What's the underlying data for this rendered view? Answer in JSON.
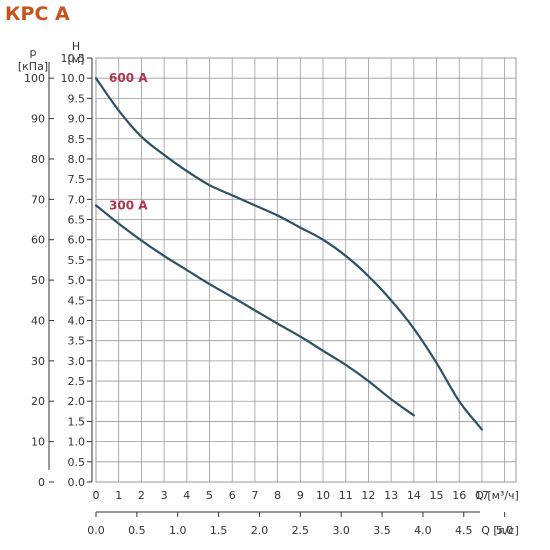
{
  "chart_data": {
    "type": "line",
    "title": "КРС А",
    "left_axis": {
      "unit_line1": "p",
      "unit_line2": "[кПа]",
      "ticks": [
        "0",
        "10",
        "20",
        "30",
        "40",
        "50",
        "60",
        "70",
        "80",
        "90",
        "100"
      ]
    },
    "y_axis": {
      "label_line1": "H",
      "label_line2": "[м]",
      "range": [
        0,
        10.5
      ],
      "step": 0.5,
      "ticks": [
        "0.0",
        "0.5",
        "1.0",
        "1.5",
        "2.0",
        "2.5",
        "3.0",
        "3.5",
        "4.0",
        "4.5",
        "5.0",
        "5.5",
        "6.0",
        "6.5",
        "7.0",
        "7.5",
        "8.0",
        "8.5",
        "9.0",
        "9.5",
        "10.0",
        "10.5"
      ]
    },
    "x_axis": {
      "label": "Q [м³/ч]",
      "range": [
        0,
        18.5
      ],
      "ticks": [
        "0",
        "1",
        "2",
        "3",
        "4",
        "5",
        "6",
        "7",
        "8",
        "9",
        "10",
        "11",
        "12",
        "13",
        "14",
        "15",
        "16",
        "17"
      ]
    },
    "x2_axis": {
      "label": "Q [л/с]",
      "ticks": [
        "0.0",
        "0.5",
        "1.0",
        "1.5",
        "2.0",
        "2.5",
        "3.0",
        "3.5",
        "4.0",
        "4.5",
        "5.0"
      ]
    },
    "grid": true,
    "series": [
      {
        "name": "600 A",
        "color": "#2c5066",
        "label_color": "#b0344e",
        "points": [
          [
            0,
            10.0
          ],
          [
            1,
            9.2
          ],
          [
            2,
            8.55
          ],
          [
            3,
            8.1
          ],
          [
            4,
            7.7
          ],
          [
            5,
            7.35
          ],
          [
            6,
            7.1
          ],
          [
            7,
            6.85
          ],
          [
            8,
            6.6
          ],
          [
            9,
            6.3
          ],
          [
            10,
            6.0
          ],
          [
            11,
            5.6
          ],
          [
            12,
            5.1
          ],
          [
            13,
            4.5
          ],
          [
            14,
            3.8
          ],
          [
            15,
            2.95
          ],
          [
            16,
            2.0
          ],
          [
            17,
            1.3
          ]
        ]
      },
      {
        "name": "300 A",
        "color": "#2c5066",
        "label_color": "#b0344e",
        "points": [
          [
            0,
            6.85
          ],
          [
            1,
            6.4
          ],
          [
            2,
            5.98
          ],
          [
            3,
            5.6
          ],
          [
            4,
            5.25
          ],
          [
            5,
            4.9
          ],
          [
            6,
            4.58
          ],
          [
            7,
            4.25
          ],
          [
            8,
            3.92
          ],
          [
            9,
            3.6
          ],
          [
            10,
            3.25
          ],
          [
            11,
            2.9
          ],
          [
            12,
            2.5
          ],
          [
            13,
            2.05
          ],
          [
            14,
            1.65
          ]
        ]
      }
    ]
  },
  "colors": {
    "title": "#c8511c",
    "axis": "#333333",
    "grid": "#9a9a9a"
  }
}
